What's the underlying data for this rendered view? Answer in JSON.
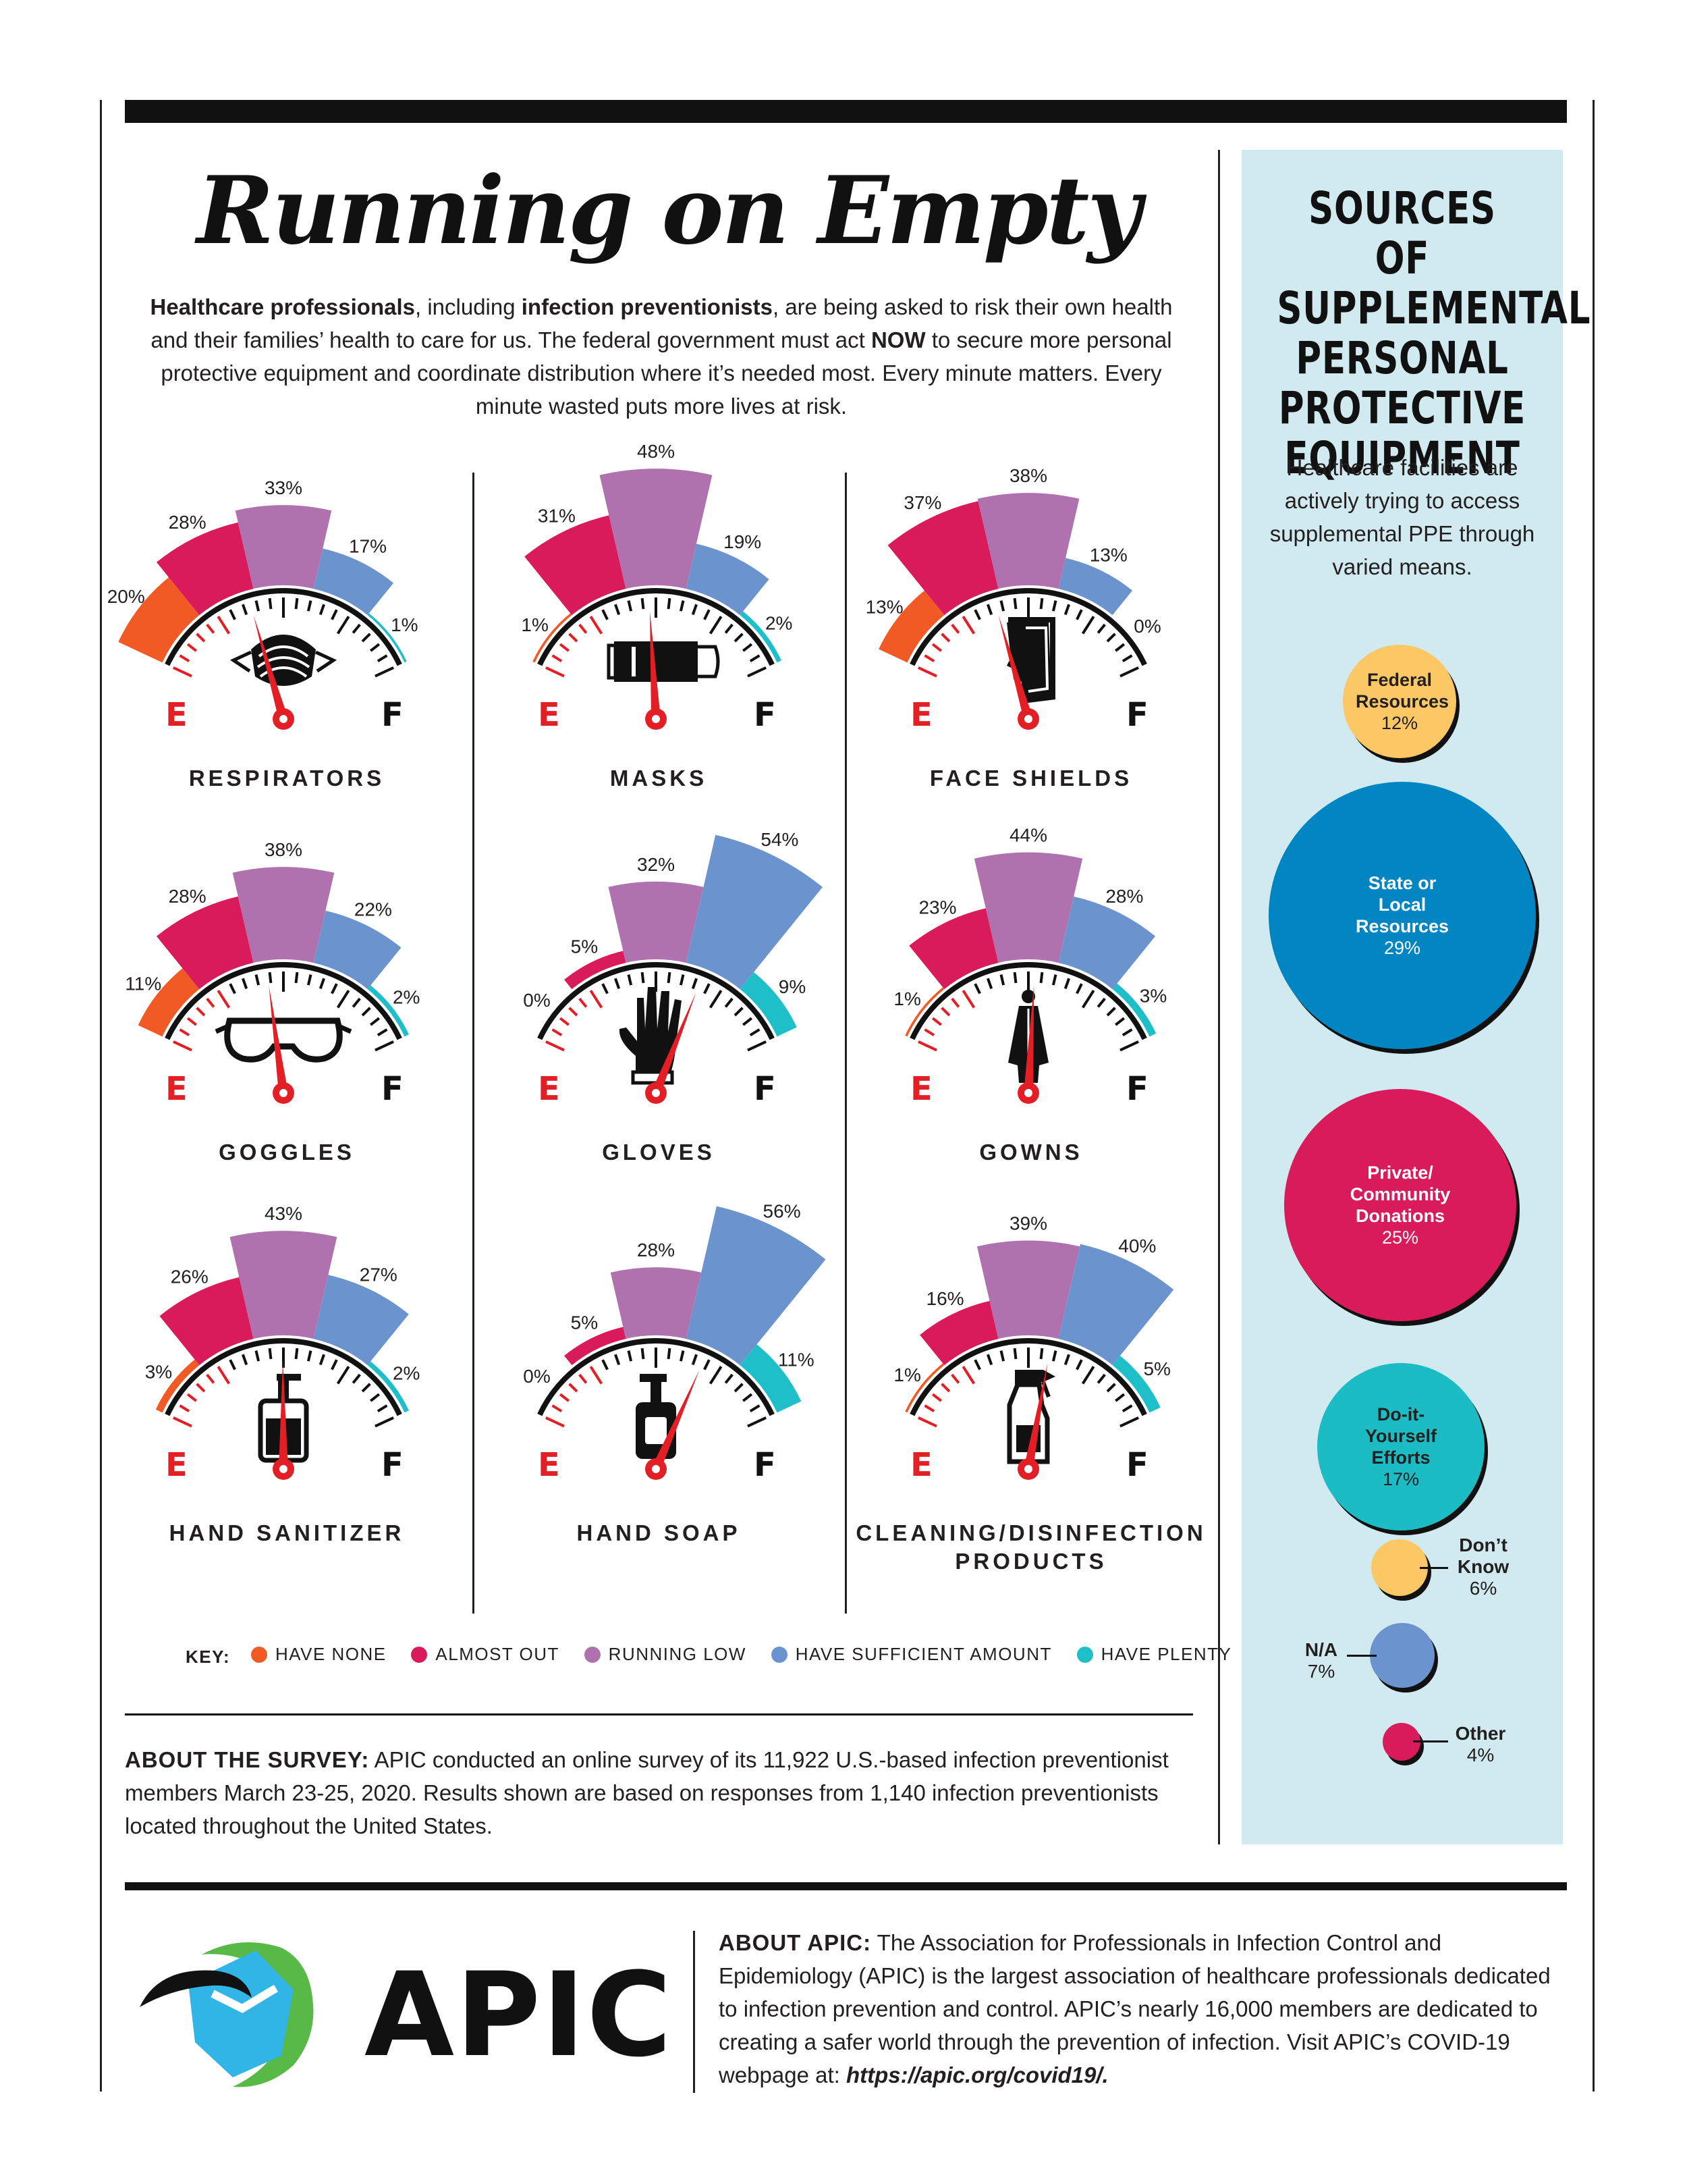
{
  "title": "Running on Empty",
  "intro": {
    "bold1": "Healthcare professionals",
    "t1": ", including ",
    "bold2": "infection preventionists",
    "t2": ", are being asked to risk their own health and their families’ health to care for us. The federal government must act ",
    "bold3": "NOW",
    "t3": " to secure more personal protective equipment and coordinate distribution where it’s needed most. Every minute matters. Every minute wasted puts more lives at risk."
  },
  "colors": {
    "have_none": "#f15a24",
    "almost_out": "#d91b5c",
    "running_low": "#b072ae",
    "have_sufficient": "#6b93cd",
    "have_plenty": "#1fbfc9",
    "needle": "#e31e24",
    "federal": "#fcc866",
    "state": "#0085c3",
    "private": "#d91b5c",
    "diy": "#1bbcc4",
    "na": "#6b93cd",
    "side_bg": "#d0eaef"
  },
  "gauge_end_labels": {
    "empty": "E",
    "full": "F"
  },
  "key": {
    "label": "KEY:",
    "items": [
      "HAVE NONE",
      "ALMOST OUT",
      "RUNNING LOW",
      "HAVE SUFFICIENT AMOUNT",
      "HAVE PLENTY"
    ]
  },
  "chart_data": [
    {
      "type": "gauge",
      "title": "RESPIRATORS",
      "icon": "respirator-icon",
      "categories": [
        "HAVE NONE",
        "ALMOST OUT",
        "RUNNING LOW",
        "HAVE SUFFICIENT AMOUNT",
        "HAVE PLENTY"
      ],
      "values": [
        20,
        28,
        33,
        17,
        1
      ],
      "value_labels": [
        "20%",
        "28%",
        "33%",
        "17%",
        "1%"
      ]
    },
    {
      "type": "gauge",
      "title": "MASKS",
      "icon": "mask-icon",
      "categories": [
        "HAVE NONE",
        "ALMOST OUT",
        "RUNNING LOW",
        "HAVE SUFFICIENT AMOUNT",
        "HAVE PLENTY"
      ],
      "values": [
        1,
        31,
        48,
        19,
        2
      ],
      "value_labels": [
        "1%",
        "31%",
        "48%",
        "19%",
        "2%"
      ]
    },
    {
      "type": "gauge",
      "title": "FACE SHIELDS",
      "icon": "face-shield-icon",
      "categories": [
        "HAVE NONE",
        "ALMOST OUT",
        "RUNNING LOW",
        "HAVE SUFFICIENT AMOUNT",
        "HAVE PLENTY"
      ],
      "values": [
        13,
        37,
        38,
        13,
        0
      ],
      "value_labels": [
        "13%",
        "37%",
        "38%",
        "13%",
        "0%"
      ]
    },
    {
      "type": "gauge",
      "title": "GOGGLES",
      "icon": "goggles-icon",
      "categories": [
        "HAVE NONE",
        "ALMOST OUT",
        "RUNNING LOW",
        "HAVE SUFFICIENT AMOUNT",
        "HAVE PLENTY"
      ],
      "values": [
        11,
        28,
        38,
        22,
        2
      ],
      "value_labels": [
        "11%",
        "28%",
        "38%",
        "22%",
        "2%"
      ]
    },
    {
      "type": "gauge",
      "title": "GLOVES",
      "icon": "glove-icon",
      "categories": [
        "HAVE NONE",
        "ALMOST OUT",
        "RUNNING LOW",
        "HAVE SUFFICIENT AMOUNT",
        "HAVE PLENTY"
      ],
      "values": [
        0,
        5,
        32,
        54,
        9
      ],
      "value_labels": [
        "0%",
        "5%",
        "32%",
        "54%",
        "9%"
      ]
    },
    {
      "type": "gauge",
      "title": "GOWNS",
      "icon": "gown-icon",
      "categories": [
        "HAVE NONE",
        "ALMOST OUT",
        "RUNNING LOW",
        "HAVE SUFFICIENT AMOUNT",
        "HAVE PLENTY"
      ],
      "values": [
        1,
        23,
        44,
        28,
        3
      ],
      "value_labels": [
        "1%",
        "23%",
        "44%",
        "28%",
        "3%"
      ]
    },
    {
      "type": "gauge",
      "title": "HAND SANITIZER",
      "icon": "hand-sanitizer-icon",
      "categories": [
        "HAVE NONE",
        "ALMOST OUT",
        "RUNNING LOW",
        "HAVE SUFFICIENT AMOUNT",
        "HAVE PLENTY"
      ],
      "values": [
        3,
        26,
        43,
        27,
        2
      ],
      "value_labels": [
        "3%",
        "26%",
        "43%",
        "27%",
        "2%"
      ]
    },
    {
      "type": "gauge",
      "title": "HAND SOAP",
      "icon": "hand-soap-icon",
      "categories": [
        "HAVE NONE",
        "ALMOST OUT",
        "RUNNING LOW",
        "HAVE SUFFICIENT AMOUNT",
        "HAVE PLENTY"
      ],
      "values": [
        0,
        5,
        28,
        56,
        11
      ],
      "value_labels": [
        "0%",
        "5%",
        "28%",
        "56%",
        "11%"
      ]
    },
    {
      "type": "gauge",
      "title": "CLEANING/DISINFECTION PRODUCTS",
      "icon": "spray-bottle-icon",
      "categories": [
        "HAVE NONE",
        "ALMOST OUT",
        "RUNNING LOW",
        "HAVE SUFFICIENT AMOUNT",
        "HAVE PLENTY"
      ],
      "values": [
        1,
        16,
        39,
        40,
        5
      ],
      "value_labels": [
        "1%",
        "16%",
        "39%",
        "40%",
        "5%"
      ]
    },
    {
      "type": "bubble",
      "title": "SOURCES OF SUPPLEMENTAL PERSONAL PROTECTIVE EQUIPMENT",
      "categories": [
        "Federal Resources",
        "State or Local Resources",
        "Private/ Community Donations",
        "Do-it- Yourself Efforts",
        "Don’t Know",
        "N/A",
        "Other"
      ],
      "values": [
        12,
        29,
        25,
        17,
        6,
        7,
        4
      ]
    }
  ],
  "sidebar": {
    "title": "SOURCES OF SUPPLEMENTAL PERSONAL PROTECTIVE EQUIPMENT",
    "description": "Healthcare facilities are actively trying to access supplemental PPE through varied means.",
    "bubbles": {
      "federal": {
        "name": "Federal Resources",
        "value": "12%"
      },
      "state": {
        "name": "State or Local Resources",
        "value": "29%"
      },
      "private": {
        "name": "Private/ Community Donations",
        "value": "25%"
      },
      "diy": {
        "name": "Do-it- Yourself Efforts",
        "value": "17%"
      },
      "dontknow": {
        "name": "Don’t Know",
        "value": "6%"
      },
      "na": {
        "name": "N/A",
        "value": "7%"
      },
      "other": {
        "name": "Other",
        "value": "4%"
      }
    }
  },
  "survey": {
    "label": "ABOUT THE SURVEY:",
    "text": " APIC conducted an online survey of its 11,922 U.S.-based infection preventionist members March 23-25, 2020. Results shown are based on responses from 1,140 infection preventionists located throughout the United States."
  },
  "about": {
    "label": "ABOUT APIC:",
    "text": " The Association for Professionals in Infection Control and Epidemiology (APIC) is the largest association of healthcare professionals dedicated to infection prevention and control. APIC’s nearly 16,000 members are dedicated to creating a safer world through the prevention of infection. Visit APIC’s COVID-19 webpage at: ",
    "url": "https://apic.org/covid19/."
  },
  "logo": {
    "text": "APIC"
  }
}
